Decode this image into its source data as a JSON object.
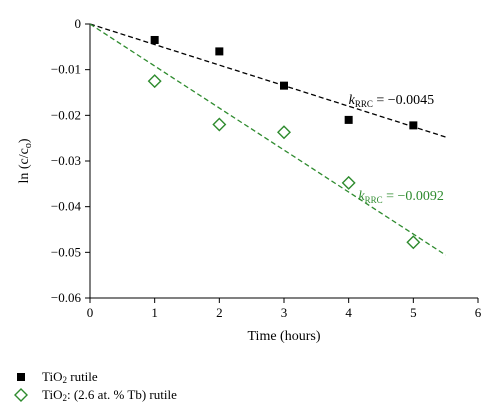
{
  "chart_data": {
    "type": "scatter",
    "xlabel": "Time (hours)",
    "ylabel": "ln (c/c",
    "ylabel_sub": "o",
    "ylabel_tail": ")",
    "xlim": [
      0,
      6
    ],
    "ylim": [
      -0.06,
      0
    ],
    "xticks": [
      "0",
      "1",
      "2",
      "3",
      "4",
      "5",
      "6"
    ],
    "yticks": [
      "0",
      "−0.01",
      "−0.02",
      "−0.03",
      "−0.04",
      "−0.05",
      "−0.06"
    ],
    "grid": false,
    "series": [
      {
        "name": "TiO2 rutile",
        "name_main": "TiO",
        "name_sub": "2",
        "name_rest": " rutile",
        "marker": "filled-square",
        "color": "#000000",
        "x": [
          1,
          2,
          3,
          4,
          5
        ],
        "y": [
          -0.0035,
          -0.006,
          -0.0135,
          -0.021,
          -0.0222
        ],
        "fit": {
          "slope": -0.0045,
          "x_range": [
            0,
            5.5
          ],
          "color": "#000000",
          "style": "dashed"
        },
        "annotation": {
          "k": "k",
          "k_sub": "RRC",
          "text": " = −0.0045"
        }
      },
      {
        "name": "TiO2: (2.6 at. % Tb) rutile",
        "name_main": "TiO",
        "name_sub": "2",
        "name_rest": ": (2.6 at. % Tb) rutile",
        "marker": "open-diamond",
        "color": "#2e8b2e",
        "x": [
          1,
          2,
          3,
          4,
          5
        ],
        "y": [
          -0.0125,
          -0.022,
          -0.0237,
          -0.0348,
          -0.0478
        ],
        "fit": {
          "slope": -0.0092,
          "x_range": [
            0,
            5.5
          ],
          "color": "#2e8b2e",
          "style": "dashed"
        },
        "annotation": {
          "k": "k",
          "k_sub": "RRC",
          "text": " = −0.0092"
        }
      }
    ]
  }
}
